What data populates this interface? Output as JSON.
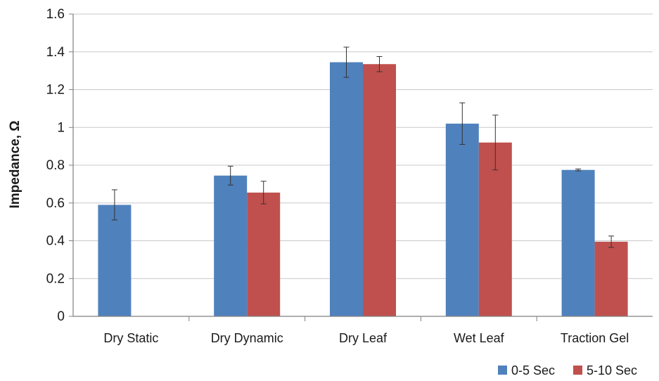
{
  "chart_data": {
    "type": "bar",
    "ylabel": "Impedance, Ω",
    "ylim": [
      0,
      1.6
    ],
    "yticks": [
      "0",
      "0.2",
      "0.4",
      "0.6",
      "0.8",
      "1",
      "1.2",
      "1.4",
      "1.6"
    ],
    "grid": true,
    "legend_position": "bottom-right",
    "categories": [
      "Dry Static",
      "Dry Dynamic",
      "Dry Leaf",
      "Wet Leaf",
      "Traction Gel"
    ],
    "series": [
      {
        "name": "0-5 Sec",
        "color": "#4f81bd",
        "values": [
          0.59,
          0.745,
          1.345,
          1.02,
          0.775
        ],
        "error": [
          0.08,
          0.05,
          0.08,
          0.11,
          0.005
        ]
      },
      {
        "name": "5-10 Sec",
        "color": "#c0504d",
        "values": [
          null,
          0.655,
          1.335,
          0.92,
          0.395
        ],
        "error": [
          null,
          0.06,
          0.04,
          0.145,
          0.03
        ]
      }
    ]
  }
}
